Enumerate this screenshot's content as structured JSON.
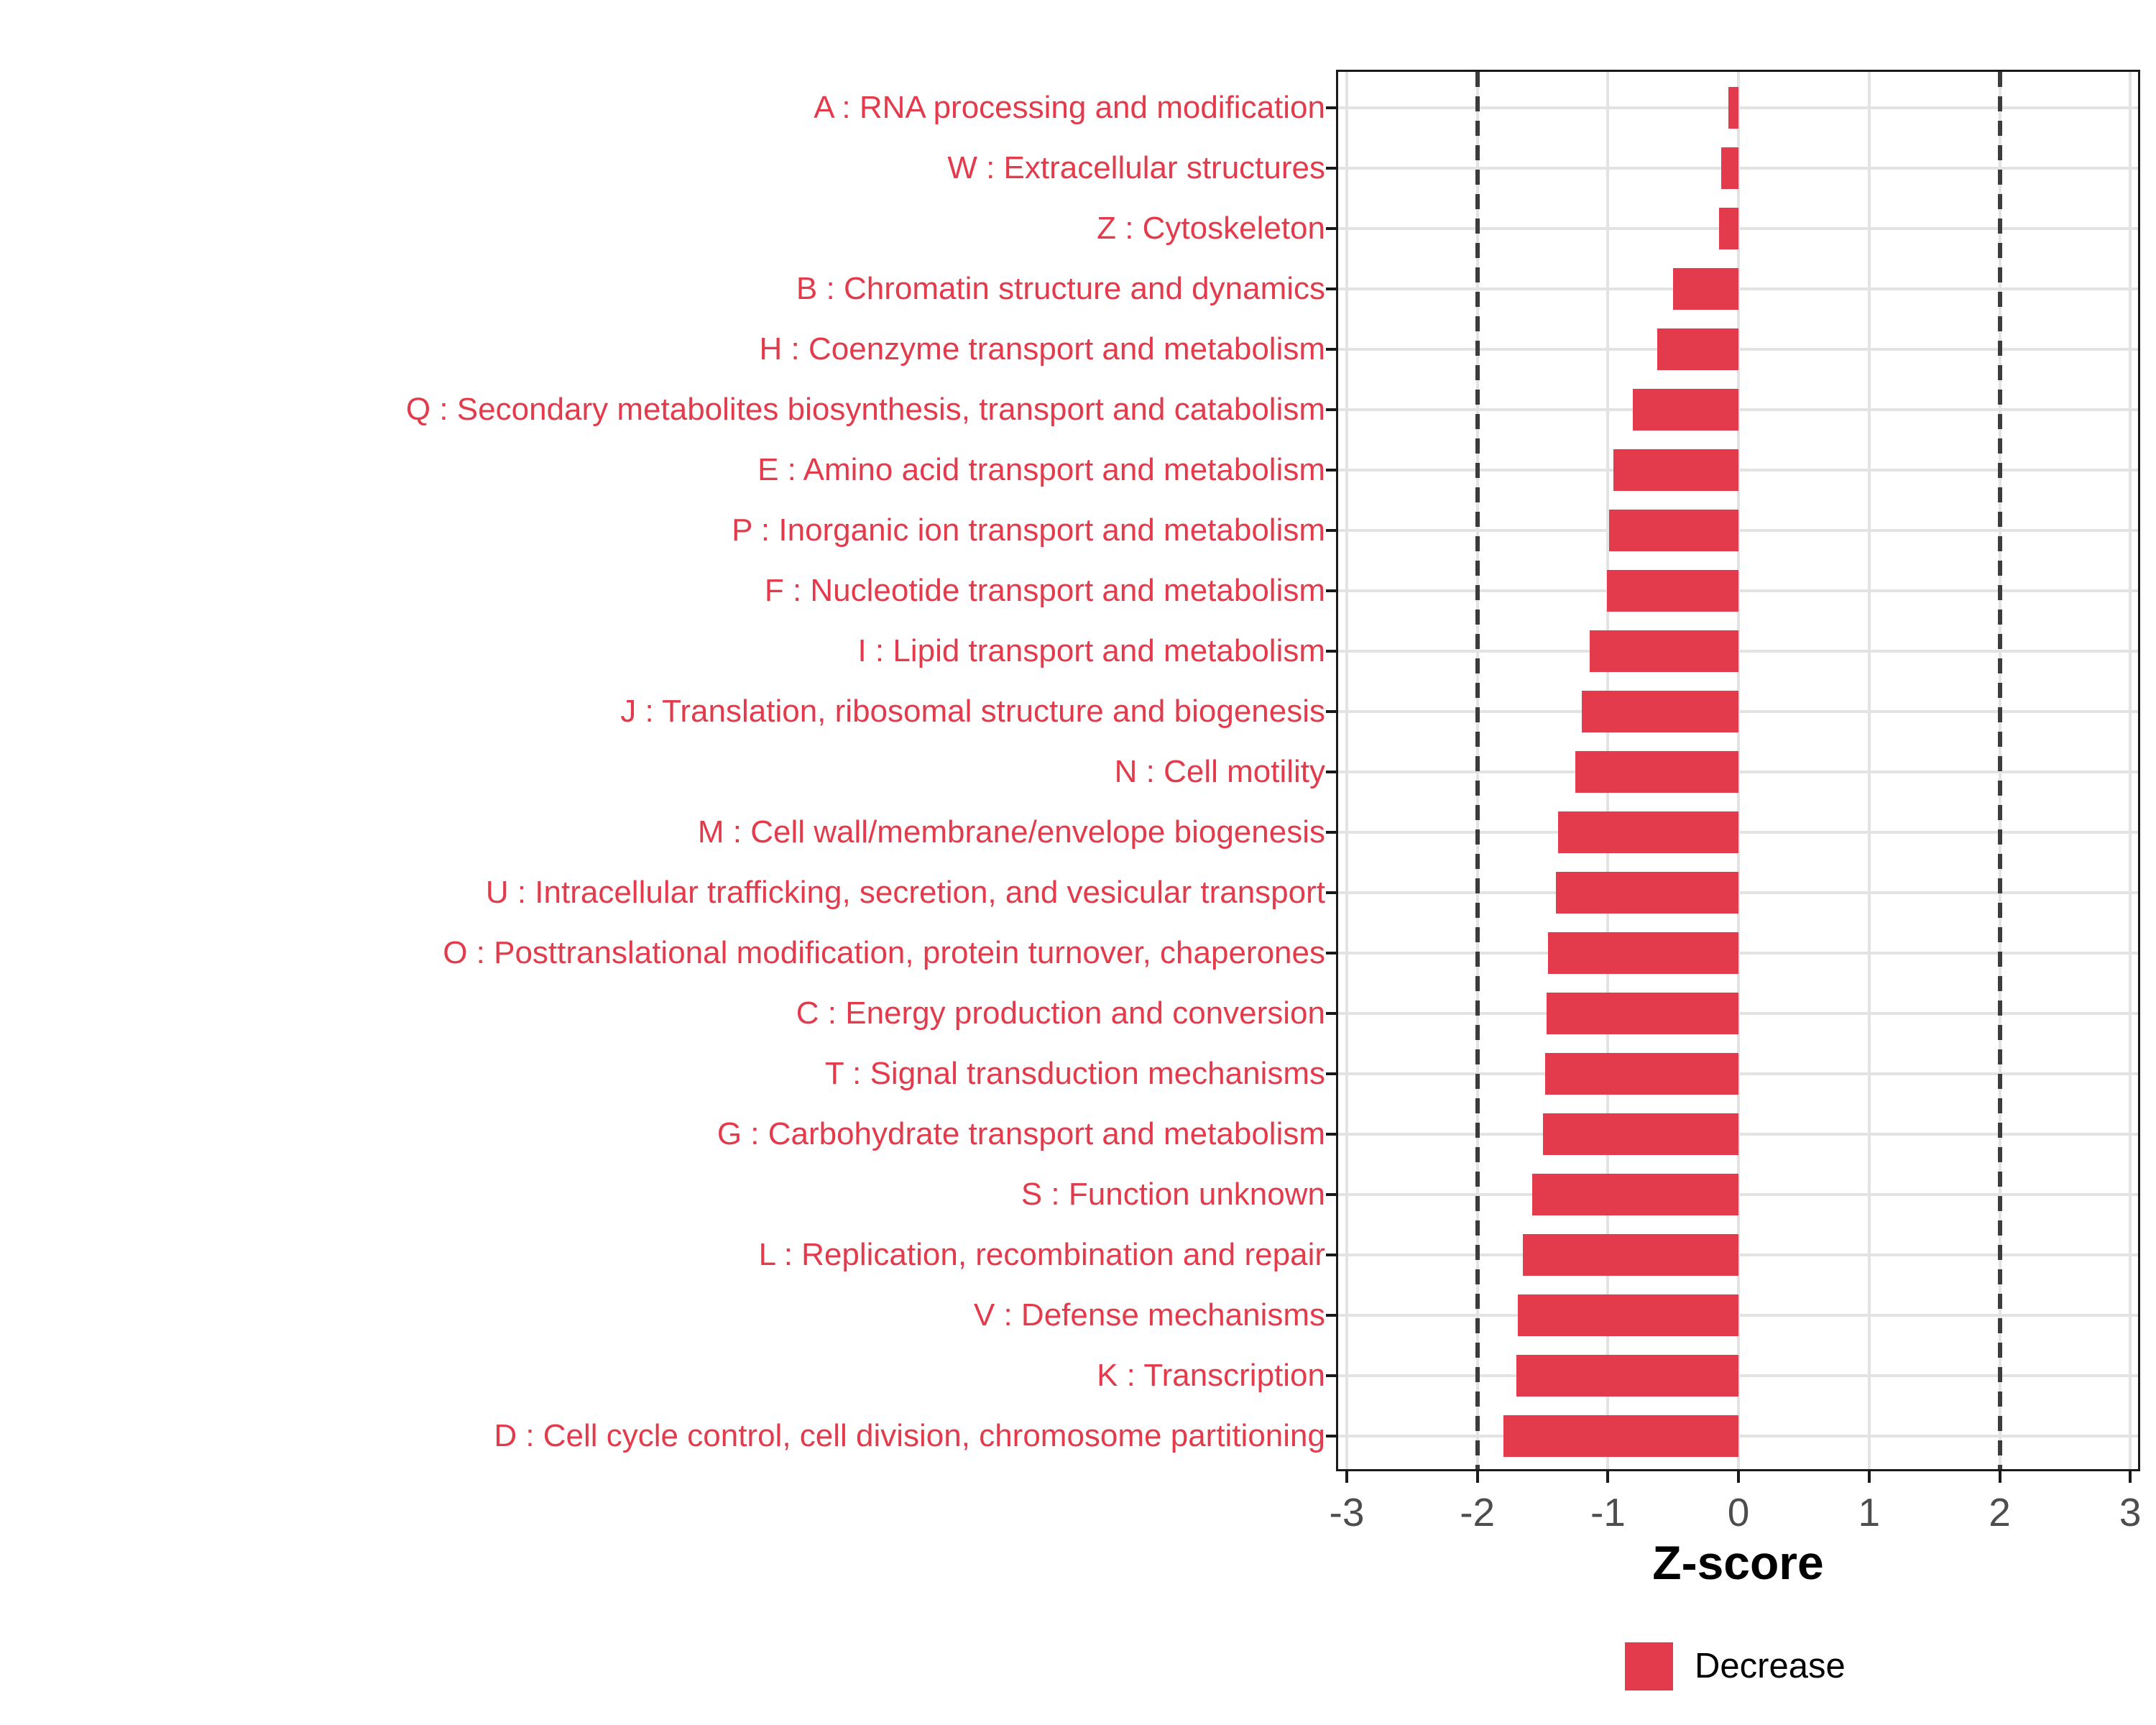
{
  "chart_data": {
    "type": "bar",
    "orientation": "horizontal",
    "xlabel": "Z-score",
    "xlim": [
      -3,
      3
    ],
    "x_ticks": [
      -3,
      -2,
      -1,
      0,
      1,
      2,
      3
    ],
    "x_tick_labels": [
      "-3",
      "-2",
      "-1",
      "0",
      "1",
      "2",
      "3"
    ],
    "reference_lines": [
      -2,
      2
    ],
    "grid": "major-x-and-category-y",
    "legend_position": "bottom-right",
    "categories": [
      "A : RNA processing and modification",
      "W : Extracellular structures",
      "Z : Cytoskeleton",
      "B : Chromatin structure and dynamics",
      "H : Coenzyme transport and metabolism",
      "Q : Secondary metabolites biosynthesis, transport and catabolism",
      "E : Amino acid transport and metabolism",
      "P : Inorganic ion transport and metabolism",
      "F : Nucleotide transport and metabolism",
      "I : Lipid transport and metabolism",
      "J : Translation, ribosomal structure and biogenesis",
      "N : Cell motility",
      "M : Cell wall/membrane/envelope biogenesis",
      "U : Intracellular trafficking, secretion, and vesicular transport",
      "O : Posttranslational modification, protein turnover, chaperones",
      "C : Energy production and conversion",
      "T : Signal transduction mechanisms",
      "G : Carbohydrate transport and metabolism",
      "S : Function unknown",
      "L : Replication, recombination and repair",
      "V : Defense mechanisms",
      "K : Transcription",
      "D : Cell cycle control, cell division, chromosome partitioning"
    ],
    "values": [
      -0.08,
      -0.13,
      -0.15,
      -0.5,
      -0.62,
      -0.81,
      -0.96,
      -0.99,
      -1.01,
      -1.14,
      -1.2,
      -1.25,
      -1.38,
      -1.4,
      -1.46,
      -1.47,
      -1.48,
      -1.5,
      -1.58,
      -1.65,
      -1.69,
      -1.7,
      -1.8
    ],
    "bar_color": "#e33b4c",
    "category_label_color": "#e33b4c",
    "gridline_color": "#e3e3e3",
    "reference_line_color": "#3c3c3c"
  },
  "legend": {
    "label": "Decrease",
    "swatch_color": "#e33b4c"
  }
}
